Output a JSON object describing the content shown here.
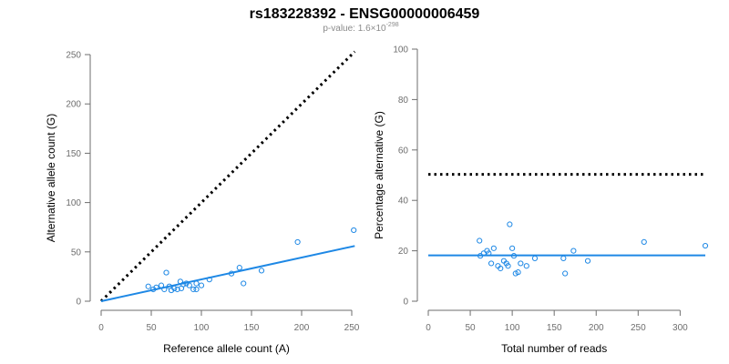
{
  "title": "rs183228392 - ENSG00000006459",
  "subtitle": {
    "prefix": "p-value: 1.6×10",
    "exponent": "-298"
  },
  "colors": {
    "points": "#1e88e5",
    "fit": "#1e88e5",
    "reference": "#000000",
    "axis": "#6e6e6e"
  },
  "chart_data": [
    {
      "type": "scatter",
      "xlabel": "Reference allele count (A)",
      "ylabel": "Alternative allele count (G)",
      "xlim": [
        0,
        250
      ],
      "ylim": [
        0,
        250
      ],
      "xticks": [
        0,
        50,
        100,
        150,
        200,
        250
      ],
      "yticks": [
        0,
        50,
        100,
        150,
        200,
        250
      ],
      "grid": false,
      "points": [
        {
          "x": 47,
          "y": 15
        },
        {
          "x": 52,
          "y": 12
        },
        {
          "x": 55,
          "y": 14
        },
        {
          "x": 60,
          "y": 16
        },
        {
          "x": 63,
          "y": 12
        },
        {
          "x": 65,
          "y": 29
        },
        {
          "x": 68,
          "y": 15
        },
        {
          "x": 70,
          "y": 11
        },
        {
          "x": 73,
          "y": 13
        },
        {
          "x": 76,
          "y": 12
        },
        {
          "x": 79,
          "y": 20
        },
        {
          "x": 80,
          "y": 13
        },
        {
          "x": 82,
          "y": 17
        },
        {
          "x": 85,
          "y": 18
        },
        {
          "x": 88,
          "y": 16
        },
        {
          "x": 92,
          "y": 12
        },
        {
          "x": 95,
          "y": 12
        },
        {
          "x": 95,
          "y": 18
        },
        {
          "x": 100,
          "y": 16
        },
        {
          "x": 108,
          "y": 22
        },
        {
          "x": 130,
          "y": 28
        },
        {
          "x": 138,
          "y": 34
        },
        {
          "x": 142,
          "y": 18
        },
        {
          "x": 160,
          "y": 31
        },
        {
          "x": 196,
          "y": 60
        },
        {
          "x": 252,
          "y": 72
        }
      ],
      "fit_line": {
        "x": [
          0,
          253
        ],
        "y": [
          0,
          56
        ]
      },
      "reference_line": {
        "x": [
          0,
          253
        ],
        "y": [
          0,
          253
        ]
      }
    },
    {
      "type": "scatter",
      "xlabel": "Total number of reads",
      "ylabel": "Percentage alternative (G)",
      "xlim": [
        0,
        330
      ],
      "ylim": [
        0,
        100
      ],
      "xticks": [
        0,
        50,
        100,
        150,
        200,
        250,
        300
      ],
      "yticks": [
        0,
        20,
        40,
        60,
        80,
        100
      ],
      "grid": false,
      "points": [
        {
          "x": 61,
          "y": 24
        },
        {
          "x": 62,
          "y": 18
        },
        {
          "x": 66,
          "y": 19
        },
        {
          "x": 70,
          "y": 20
        },
        {
          "x": 72,
          "y": 19
        },
        {
          "x": 75,
          "y": 15
        },
        {
          "x": 78,
          "y": 21
        },
        {
          "x": 83,
          "y": 14
        },
        {
          "x": 86,
          "y": 13
        },
        {
          "x": 90,
          "y": 16
        },
        {
          "x": 93,
          "y": 15
        },
        {
          "x": 95,
          "y": 14
        },
        {
          "x": 97,
          "y": 30.5
        },
        {
          "x": 100,
          "y": 21
        },
        {
          "x": 102,
          "y": 18
        },
        {
          "x": 104,
          "y": 11
        },
        {
          "x": 107,
          "y": 11.5
        },
        {
          "x": 110,
          "y": 15
        },
        {
          "x": 117,
          "y": 14
        },
        {
          "x": 127,
          "y": 17
        },
        {
          "x": 161,
          "y": 17
        },
        {
          "x": 163,
          "y": 11
        },
        {
          "x": 173,
          "y": 20
        },
        {
          "x": 190,
          "y": 16
        },
        {
          "x": 257,
          "y": 23.5
        },
        {
          "x": 330,
          "y": 22
        }
      ],
      "fit_line": {
        "x": [
          0,
          330
        ],
        "y": [
          18.2,
          18.2
        ]
      },
      "reference_line": {
        "x": [
          0,
          330
        ],
        "y": [
          50.3,
          50.3
        ]
      }
    }
  ]
}
